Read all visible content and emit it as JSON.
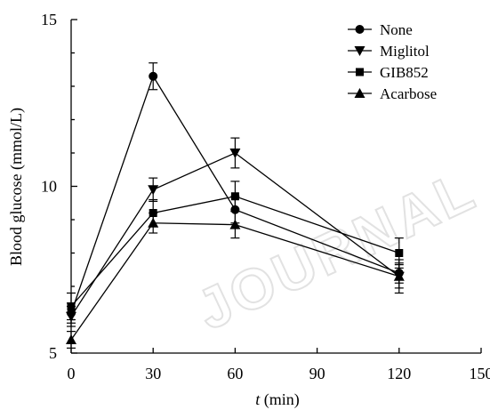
{
  "watermark": "JOURNAL",
  "chart_data": {
    "type": "line",
    "xlabel_italic": "t",
    "xlabel_unit": " (min)",
    "ylabel": "Blood glucose (mmol/L)",
    "xlim": [
      0,
      150
    ],
    "ylim": [
      5,
      15
    ],
    "xticks": [
      0,
      30,
      60,
      90,
      120,
      150
    ],
    "yticks": [
      5,
      10,
      15
    ],
    "grid": false,
    "legend_position": "top-right",
    "x": [
      0,
      30,
      60,
      120
    ],
    "series": [
      {
        "name": "None",
        "marker": "circle",
        "values": [
          6.2,
          13.3,
          9.3,
          7.4
        ],
        "errors": [
          0.3,
          0.4,
          0.4,
          0.3
        ]
      },
      {
        "name": "Miglitol",
        "marker": "triangle-down",
        "values": [
          6.1,
          9.9,
          11.0,
          7.3
        ],
        "errors": [
          0.3,
          0.35,
          0.45,
          0.35
        ]
      },
      {
        "name": "GIB852",
        "marker": "square",
        "values": [
          6.4,
          9.2,
          9.7,
          8.0
        ],
        "errors": [
          0.4,
          0.4,
          0.45,
          0.45
        ]
      },
      {
        "name": "Acarbose",
        "marker": "triangle-up",
        "values": [
          5.4,
          8.9,
          8.85,
          7.3
        ],
        "errors": [
          0.25,
          0.3,
          0.4,
          0.5
        ]
      }
    ]
  }
}
